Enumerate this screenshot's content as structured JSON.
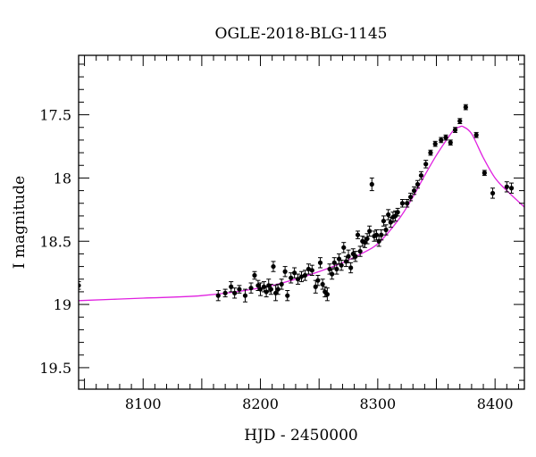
{
  "chart_data": {
    "type": "scatter",
    "title": "OGLE-2018-BLG-1145",
    "xlabel": "HJD - 2450000",
    "ylabel": "I magnitude",
    "xlim": [
      8045,
      8425
    ],
    "ylim": [
      19.67,
      17.03
    ],
    "y_inverted": true,
    "x_ticks": [
      8100,
      8200,
      8300,
      8400
    ],
    "x_tick_labels": [
      "8100",
      "8200",
      "8300",
      "8400"
    ],
    "y_ticks": [
      17.5,
      18,
      18.5,
      19,
      19.5
    ],
    "y_tick_labels": [
      "17.5",
      "18",
      "18.5",
      "19",
      "19.5"
    ],
    "grid": false,
    "colors": {
      "model": "#e020e0",
      "points": "#000000"
    },
    "series": [
      {
        "type": "points",
        "x": [
          8045,
          8164,
          8170,
          8175,
          8178,
          8182,
          8187,
          8192,
          8195,
          8198,
          8200,
          8203,
          8205,
          8207,
          8209,
          8211,
          8213,
          8215,
          8218,
          8221,
          8223,
          8226,
          8229,
          8232,
          8235,
          8238,
          8241,
          8244,
          8247,
          8249,
          8251,
          8253,
          8255,
          8257,
          8259,
          8261,
          8263,
          8265,
          8267,
          8269,
          8271,
          8273,
          8275,
          8277,
          8279,
          8281,
          8283,
          8285,
          8287,
          8289,
          8291,
          8293,
          8295,
          8297,
          8299,
          8301,
          8303,
          8305,
          8307,
          8309,
          8311,
          8313,
          8315,
          8317,
          8321,
          8325,
          8328,
          8331,
          8334,
          8337,
          8341,
          8345,
          8349,
          8354,
          8358,
          8362,
          8366,
          8370,
          8375,
          8384,
          8391,
          8398,
          8410,
          8414
        ],
        "y": [
          18.85,
          18.93,
          18.91,
          18.86,
          18.91,
          18.88,
          18.93,
          18.87,
          18.77,
          18.85,
          18.88,
          18.86,
          18.9,
          18.85,
          18.88,
          18.7,
          18.91,
          18.88,
          18.84,
          18.74,
          18.93,
          18.79,
          18.75,
          18.8,
          18.78,
          18.77,
          18.72,
          18.73,
          18.86,
          18.81,
          18.67,
          18.84,
          18.9,
          18.92,
          18.72,
          18.76,
          18.67,
          18.72,
          18.64,
          18.69,
          18.55,
          18.66,
          18.62,
          18.71,
          18.6,
          18.62,
          18.45,
          18.58,
          18.5,
          18.51,
          18.48,
          18.42,
          18.05,
          18.46,
          18.45,
          18.5,
          18.45,
          18.34,
          18.41,
          18.29,
          18.35,
          18.31,
          18.3,
          18.27,
          18.2,
          18.2,
          18.15,
          18.1,
          18.05,
          17.98,
          17.89,
          17.8,
          17.73,
          17.7,
          17.68,
          17.72,
          17.62,
          17.55,
          17.44,
          17.66,
          17.96,
          18.12,
          18.07,
          18.08
        ],
        "yerr": [
          0.03,
          0.04,
          0.03,
          0.04,
          0.04,
          0.03,
          0.05,
          0.04,
          0.03,
          0.04,
          0.05,
          0.04,
          0.04,
          0.05,
          0.04,
          0.04,
          0.06,
          0.04,
          0.04,
          0.04,
          0.04,
          0.04,
          0.04,
          0.04,
          0.04,
          0.04,
          0.04,
          0.04,
          0.05,
          0.04,
          0.04,
          0.04,
          0.04,
          0.05,
          0.04,
          0.04,
          0.04,
          0.04,
          0.04,
          0.04,
          0.04,
          0.04,
          0.05,
          0.04,
          0.04,
          0.04,
          0.03,
          0.04,
          0.04,
          0.04,
          0.04,
          0.04,
          0.05,
          0.04,
          0.04,
          0.04,
          0.04,
          0.04,
          0.04,
          0.04,
          0.04,
          0.04,
          0.04,
          0.03,
          0.03,
          0.03,
          0.03,
          0.03,
          0.03,
          0.03,
          0.03,
          0.02,
          0.02,
          0.02,
          0.02,
          0.02,
          0.02,
          0.02,
          0.02,
          0.02,
          0.02,
          0.04,
          0.04,
          0.04
        ]
      },
      {
        "type": "model",
        "x": [
          8045,
          8100,
          8150,
          8200,
          8230,
          8250,
          8270,
          8290,
          8300,
          8310,
          8320,
          8330,
          8340,
          8350,
          8360,
          8365,
          8370,
          8373,
          8380,
          8390,
          8400,
          8410,
          8425
        ],
        "y": [
          18.97,
          18.95,
          18.93,
          18.87,
          18.8,
          18.74,
          18.67,
          18.58,
          18.52,
          18.42,
          18.3,
          18.15,
          17.98,
          17.82,
          17.68,
          17.62,
          17.595,
          17.595,
          17.65,
          17.84,
          18.0,
          18.1,
          18.23
        ]
      }
    ]
  }
}
